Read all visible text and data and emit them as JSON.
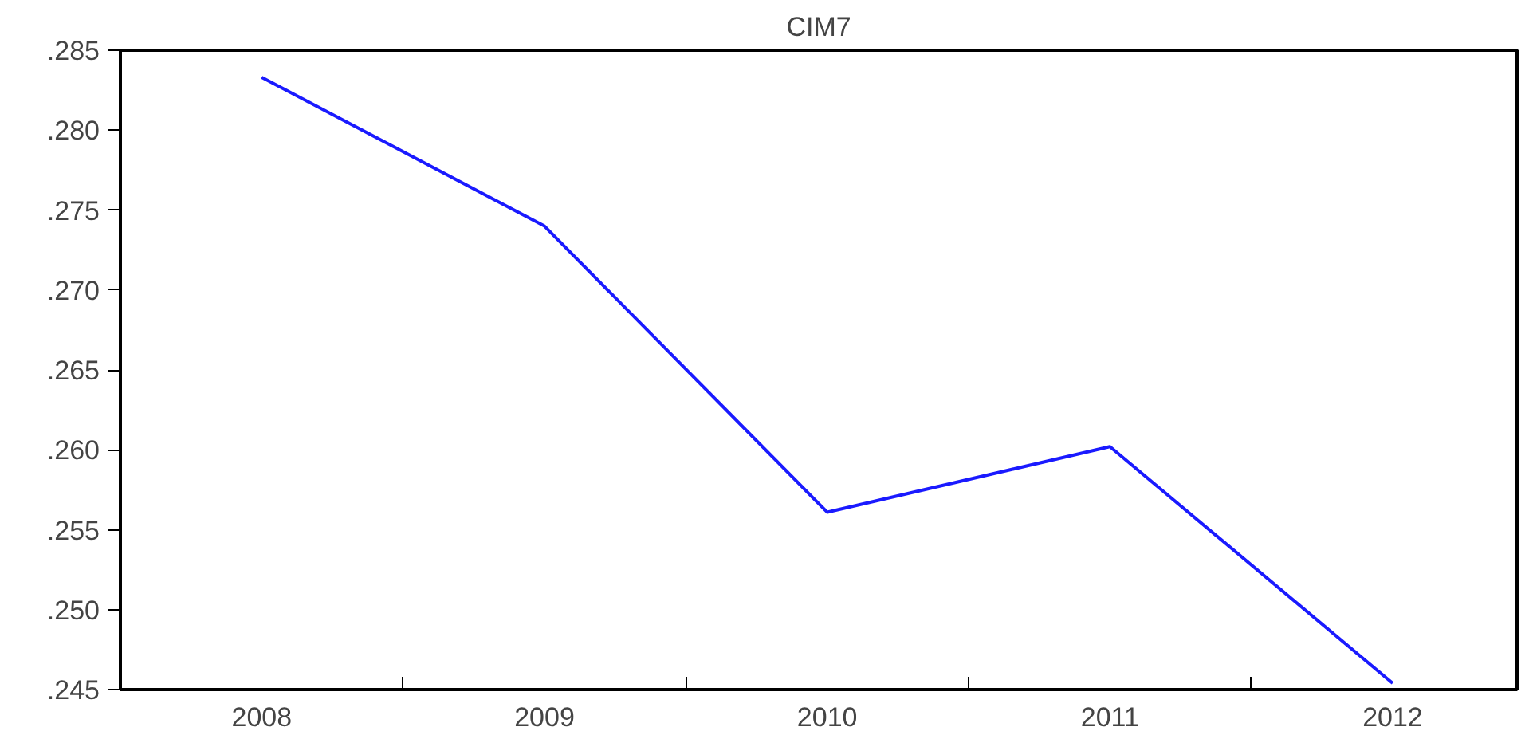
{
  "chart_data": {
    "type": "line",
    "title": "CIM7",
    "categories": [
      "2008",
      "2009",
      "2010",
      "2011",
      "2012"
    ],
    "series": [
      {
        "color": "#1a1aff",
        "values": [
          0.2833,
          0.274,
          0.2561,
          0.2602,
          0.2454
        ]
      }
    ],
    "ylim": [
      0.245,
      0.285
    ],
    "yticks": [
      {
        "value": 0.245,
        "label": ".245"
      },
      {
        "value": 0.25,
        "label": ".250"
      },
      {
        "value": 0.255,
        "label": ".255"
      },
      {
        "value": 0.26,
        "label": ".260"
      },
      {
        "value": 0.265,
        "label": ".265"
      },
      {
        "value": 0.27,
        "label": ".270"
      },
      {
        "value": 0.275,
        "label": ".275"
      },
      {
        "value": 0.28,
        "label": ".280"
      },
      {
        "value": 0.285,
        "label": ".285"
      }
    ],
    "grid": false,
    "marker": "none",
    "line_style": "solid"
  }
}
